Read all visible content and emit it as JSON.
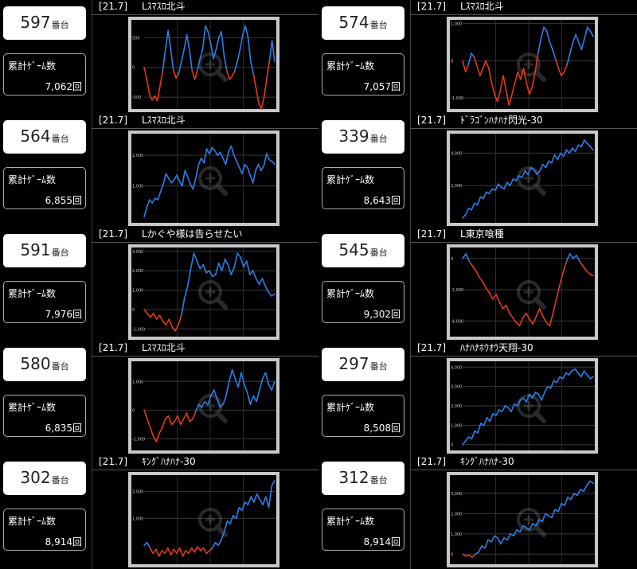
{
  "units": {
    "machine_suffix": "番台",
    "games_label": "累計ｹﾞｰﾑ数"
  },
  "colors": {
    "positive": "#2d7fea",
    "negative": "#e23a1e",
    "frame": "#c8c8c8",
    "plot_bg": "#000000"
  },
  "machines": [
    {
      "id": "597",
      "games": "7,062回",
      "rate": "[21.7]",
      "name": "Lｽﾏｽﾛ北斗",
      "chart_data": {
        "type": "line",
        "yticks": [
          "500",
          "0",
          "-500"
        ],
        "ylim": [
          -700,
          800
        ],
        "y": [
          0,
          -200,
          -450,
          -550,
          -480,
          -560,
          -300,
          -50,
          300,
          620,
          300,
          -50,
          -180,
          -100,
          100,
          300,
          550,
          300,
          -50,
          -200,
          -50,
          150,
          320,
          700,
          600,
          400,
          150,
          300,
          500,
          600,
          200,
          -50,
          -200,
          -150,
          -60,
          100,
          300,
          550,
          700,
          500,
          100,
          -100,
          -350,
          -600,
          -700,
          -500,
          -200,
          100,
          450,
          100
        ]
      }
    },
    {
      "id": "574",
      "games": "7,057回",
      "rate": "[21.7]",
      "name": "Lｽﾏｽﾛ北斗",
      "chart_data": {
        "type": "line",
        "yticks": [
          "1,000",
          "0",
          "-1,000"
        ],
        "ylim": [
          -1300,
          1100
        ],
        "y": [
          0,
          -300,
          -100,
          200,
          100,
          -150,
          -400,
          -200,
          0,
          -200,
          -600,
          -900,
          -1100,
          -800,
          -400,
          -800,
          -1200,
          -900,
          -600,
          -300,
          -500,
          -200,
          -600,
          -900,
          -700,
          -300,
          200,
          600,
          900,
          800,
          500,
          300,
          50,
          -200,
          -400,
          -300,
          -100,
          200,
          500,
          700,
          500,
          300,
          600,
          900,
          800,
          650
        ]
      }
    },
    {
      "id": "564",
      "games": "6,855回",
      "rate": "[21.7]",
      "name": "Lｽﾏｽﾛ北斗",
      "chart_data": {
        "type": "line",
        "yticks": [
          "2,000",
          "1,000"
        ],
        "ylim": [
          -200,
          2700
        ],
        "y": [
          0,
          300,
          550,
          450,
          600,
          550,
          800,
          1050,
          1400,
          1250,
          1100,
          1200,
          1350,
          1150,
          1000,
          1500,
          1300,
          1050,
          900,
          1250,
          1700,
          1900,
          1750,
          2200,
          2050,
          2250,
          2150,
          2000,
          2100,
          1900,
          1700,
          2100,
          2300,
          2000,
          1800,
          1600,
          1400,
          1700,
          1600,
          1350,
          1100,
          1500,
          1700,
          1500,
          1650,
          2050,
          1850,
          1800,
          1700
        ]
      }
    },
    {
      "id": "339",
      "games": "8,643回",
      "rate": "[21.7]",
      "name": "ﾄﾞﾗｺﾞﾝﾊﾅﾊﾅ閃光-30",
      "chart_data": {
        "type": "line",
        "yticks": [
          "4,000",
          "2,000"
        ],
        "ylim": [
          -300,
          5200
        ],
        "y": [
          0,
          200,
          600,
          500,
          900,
          800,
          1300,
          1200,
          1600,
          1500,
          1800,
          1700,
          2100,
          1900,
          1800,
          2200,
          2000,
          2400,
          2300,
          2600,
          2500,
          2900,
          2700,
          3100,
          3000,
          2700,
          2900,
          3300,
          3100,
          3500,
          3400,
          3900,
          3600,
          4000,
          3800,
          4200,
          4000,
          4300,
          4100,
          4500,
          4400,
          4800,
          4600,
          4400,
          4200
        ]
      }
    },
    {
      "id": "591",
      "games": "7,976回",
      "rate": "[21.7]",
      "name": "Lかぐや様は告らせたい",
      "chart_data": {
        "type": "line",
        "yticks": [
          "3,000",
          "2,000",
          "1,000",
          "0",
          "-1,000"
        ],
        "ylim": [
          -1400,
          3200
        ],
        "y": [
          0,
          -200,
          -400,
          -200,
          -500,
          -300,
          -600,
          -800,
          -500,
          -900,
          -1100,
          -800,
          -300,
          600,
          1200,
          2100,
          2900,
          2500,
          2100,
          2300,
          1900,
          2000,
          1700,
          1800,
          2400,
          2000,
          2600,
          2300,
          1800,
          2200,
          2900,
          2700,
          2200,
          2500,
          1800,
          2000,
          1600,
          1300,
          1600,
          1200,
          900,
          700,
          800
        ]
      }
    },
    {
      "id": "545",
      "games": "9,302回",
      "rate": "[21.7]",
      "name": "L東京喰種",
      "chart_data": {
        "type": "line",
        "yticks": [
          "0",
          "-2,000",
          "-4,000"
        ],
        "ylim": [
          -5000,
          700
        ],
        "y": [
          0,
          300,
          -200,
          -500,
          -800,
          -1200,
          -1500,
          -1900,
          -2200,
          -2600,
          -2300,
          -2800,
          -3200,
          -3000,
          -3500,
          -3800,
          -4100,
          -4300,
          -3800,
          -3500,
          -3900,
          -4200,
          -3700,
          -3200,
          -3700,
          -4100,
          -4300,
          -3500,
          -2600,
          -1700,
          -900,
          -200,
          300,
          0,
          200,
          -200,
          -500,
          -800,
          -1000,
          -1100
        ]
      }
    },
    {
      "id": "580",
      "games": "6,835回",
      "rate": "[21.7]",
      "name": "Lｽﾏｽﾛ北斗",
      "chart_data": {
        "type": "line",
        "yticks": [
          "1,000",
          "0",
          "-1,000"
        ],
        "ylim": [
          -1400,
          1700
        ],
        "y": [
          0,
          -300,
          -600,
          -900,
          -1100,
          -800,
          -600,
          -300,
          -200,
          -500,
          -400,
          -200,
          -500,
          -300,
          -100,
          -400,
          -300,
          -50,
          200,
          100,
          300,
          200,
          500,
          700,
          400,
          100,
          200,
          500,
          1000,
          1400,
          1100,
          800,
          1300,
          900,
          600,
          200,
          500,
          300,
          700,
          1100,
          1300,
          900,
          700,
          1000
        ]
      }
    },
    {
      "id": "297",
      "games": "8,508回",
      "rate": "[21.7]",
      "name": "ﾊﾅﾊﾅﾎｳｵｳ天翔-30",
      "chart_data": {
        "type": "line",
        "yticks": [
          "4,000",
          "3,000",
          "2,000",
          "1,000",
          "0"
        ],
        "ylim": [
          -300,
          4300
        ],
        "y": [
          0,
          200,
          400,
          300,
          700,
          600,
          1100,
          1000,
          1400,
          1200,
          1600,
          1500,
          1800,
          1700,
          2000,
          1900,
          1700,
          2100,
          2000,
          2300,
          2400,
          2200,
          2600,
          2400,
          2700,
          2600,
          2300,
          2700,
          3000,
          2900,
          3300,
          3200,
          3500,
          3400,
          3700,
          3600,
          3800,
          3900,
          3700,
          3500,
          3800,
          3600,
          3400,
          3500
        ]
      }
    },
    {
      "id": "302",
      "games": "8,914回",
      "rate": "[21.7]",
      "name": "ｷﾝｸﾞﾊﾅﾊﾅ-30",
      "chart_data": {
        "type": "line",
        "yticks": [
          "2,000",
          "1,000"
        ],
        "ylim": [
          -700,
          2600
        ],
        "y": [
          0,
          100,
          -100,
          -300,
          -150,
          -400,
          -200,
          -300,
          -100,
          -350,
          -150,
          -300,
          -100,
          -400,
          -200,
          -300,
          -100,
          -250,
          -50,
          -200,
          -100,
          -300,
          -200,
          -100,
          100,
          0,
          200,
          500,
          900,
          800,
          1100,
          1000,
          1400,
          1300,
          1600,
          1500,
          1800,
          1600,
          1900,
          1700,
          1500,
          1800,
          1400,
          2200,
          2400
        ]
      }
    },
    {
      "id": "312",
      "games": "8,914回",
      "rate": "[21.7]",
      "name": "ｷﾝｸﾞﾊﾅﾊﾅ-30",
      "chart_data": {
        "type": "line",
        "yticks": [
          "3,000",
          "2,000",
          "1,000",
          "0"
        ],
        "ylim": [
          -500,
          3900
        ],
        "y": [
          0,
          -100,
          -50,
          -150,
          0,
          100,
          400,
          300,
          700,
          600,
          900,
          800,
          500,
          800,
          700,
          1000,
          900,
          1200,
          1100,
          1400,
          1300,
          1200,
          1500,
          1400,
          1700,
          1600,
          2000,
          1900,
          1800,
          2200,
          2100,
          2500,
          2400,
          2800,
          2700,
          3000,
          2900,
          3200,
          3100,
          3400,
          3600,
          3500
        ]
      }
    }
  ]
}
